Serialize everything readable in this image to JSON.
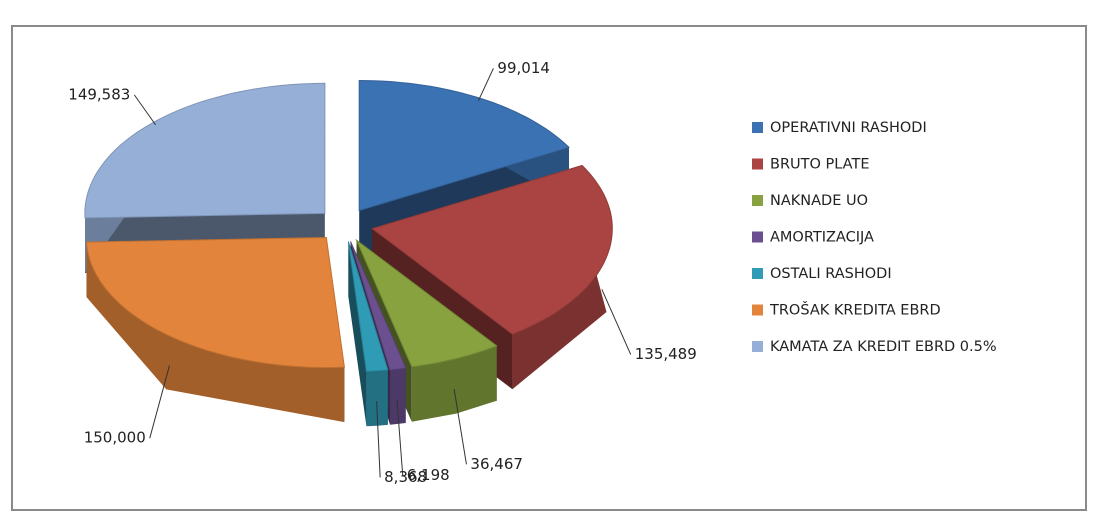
{
  "chart_data": {
    "type": "pie",
    "categories": [
      "OPERATIVNI RASHODI",
      "BRUTO PLATE",
      "NAKNADE UO",
      "AMORTIZACIJA",
      "OSTALI RASHODI",
      "TROŠAK KREDITA EBRD",
      "KAMATA ZA KREDIT EBRD 0.5%"
    ],
    "values": [
      99014,
      135489,
      36467,
      6198,
      8368,
      150000,
      149583
    ],
    "value_labels": [
      "99,014",
      "135,489",
      "36,467",
      "6,198",
      "8,368",
      "150,000",
      "149,583"
    ],
    "colors": [
      "#3b72b3",
      "#a94442",
      "#87a23f",
      "#6b4f8f",
      "#2f9bb5",
      "#e2843b",
      "#95afd7"
    ],
    "legend": "right"
  }
}
